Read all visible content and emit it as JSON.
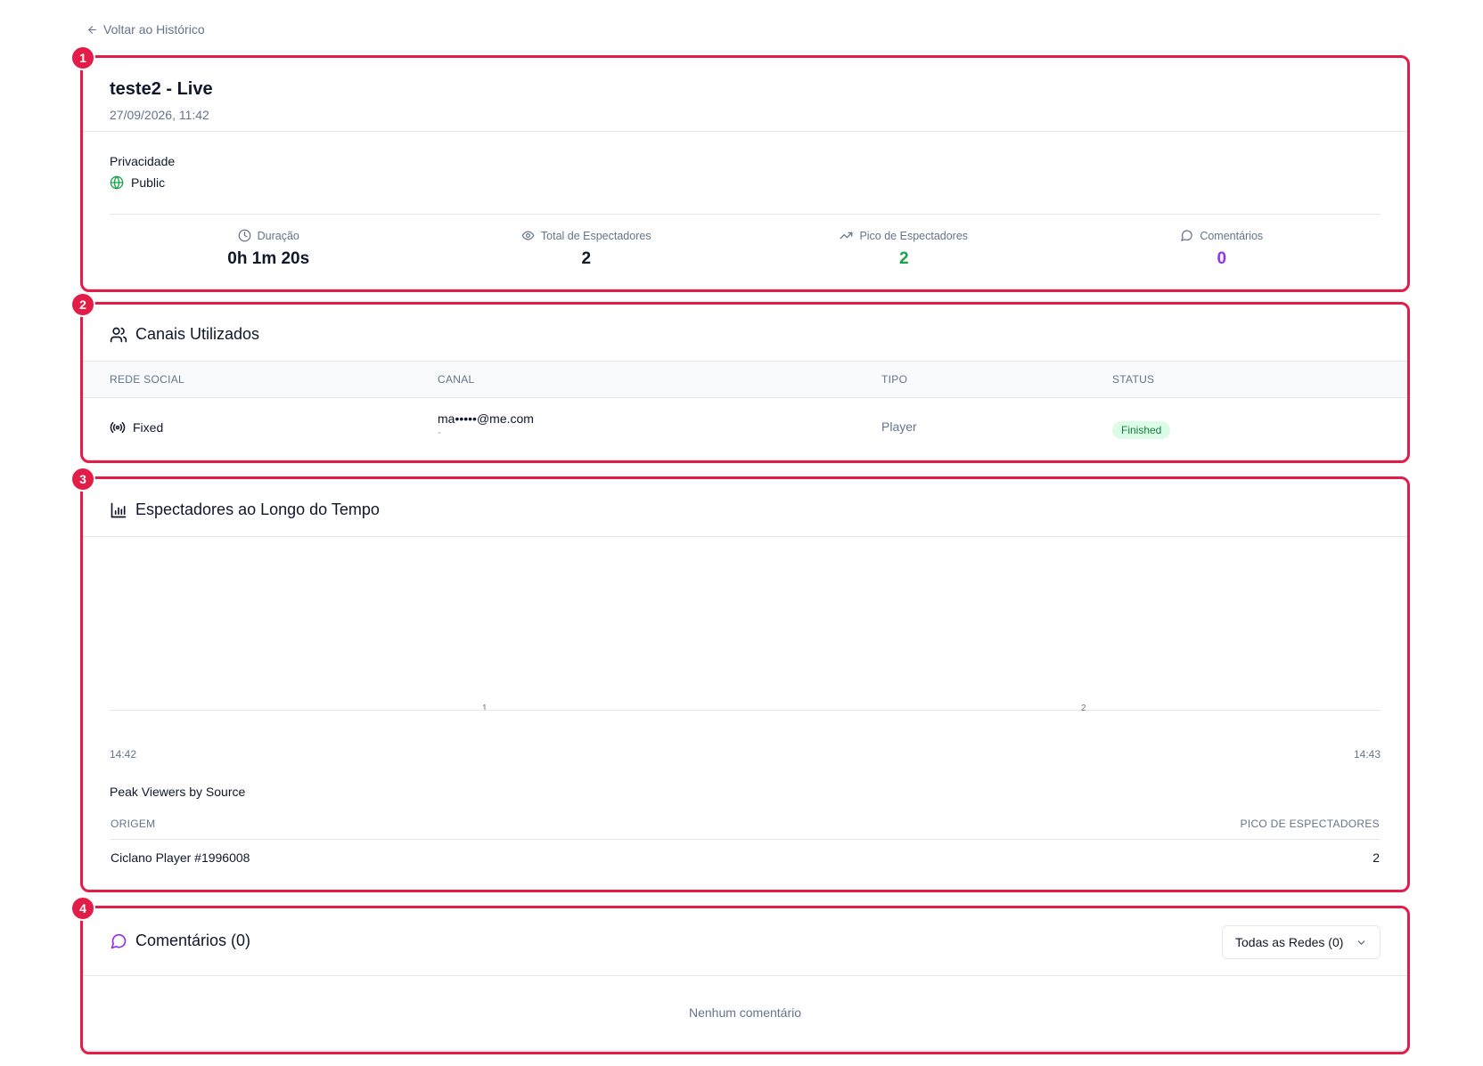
{
  "nav": {
    "back_label": "Voltar ao Histórico"
  },
  "annotations": [
    "1",
    "2",
    "3",
    "4"
  ],
  "summary": {
    "title": "teste2 - Live",
    "datetime": "27/09/2026, 11:42",
    "privacy_label": "Privacidade",
    "privacy_value": "Public",
    "stats": [
      {
        "label": "Duração",
        "value": "0h 1m 20s",
        "icon": "clock-icon",
        "color": "#0f172a"
      },
      {
        "label": "Total de Espectadores",
        "value": "2",
        "icon": "eye-icon",
        "color": "#0f172a"
      },
      {
        "label": "Pico de Espectadores",
        "value": "2",
        "icon": "trending-up-icon",
        "color": "#16a34a"
      },
      {
        "label": "Comentários",
        "value": "0",
        "icon": "message-circle-icon",
        "color": "#9333ea"
      }
    ]
  },
  "channels": {
    "title": "Canais Utilizados",
    "columns": [
      "REDE SOCIAL",
      "CANAL",
      "TIPO",
      "STATUS"
    ],
    "rows": [
      {
        "network": "Fixed",
        "channel": "ma•••••@me.com",
        "channel_sub": "-",
        "type": "Player",
        "status": "Finished"
      }
    ]
  },
  "viewers_chart": {
    "title": "Espectadores ao Longo do Tempo",
    "bar_labels": [
      "1",
      "2"
    ],
    "time_start": "14:42",
    "time_end": "14:43",
    "peak_title": "Peak Viewers by Source",
    "peak_columns": [
      "ORIGEM",
      "PICO DE ESPECTADORES"
    ],
    "peak_rows": [
      {
        "source": "Ciclano Player #1996008",
        "peak": "2"
      }
    ]
  },
  "comments": {
    "title": "Comentários (0)",
    "filter_label": "Todas as Redes (0)",
    "empty_message": "Nenhum comentário"
  },
  "colors": {
    "accent_frame": "#e11d48",
    "status_success_bg": "#dcfce7",
    "status_success_fg": "#15803d"
  }
}
